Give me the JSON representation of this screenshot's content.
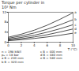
{
  "chart_data": {
    "type": "line",
    "title": "Torque per cylinder in 10³ Nm",
    "x_label": "T (°C)",
    "x": [
      0,
      2,
      4,
      6,
      8,
      10
    ],
    "xlim": [
      0,
      10
    ],
    "xticks": [
      0,
      2,
      4,
      6,
      8,
      10
    ],
    "ylim": [
      0,
      12
    ],
    "yticks": [
      0,
      4,
      8,
      12
    ],
    "series": [
      {
        "name": "a",
        "color": "#222222",
        "values": [
          2,
          3.2,
          4.8,
          6.8,
          9.2,
          11.8
        ]
      },
      {
        "name": "b",
        "color": "#222222",
        "values": [
          1.6,
          2.5,
          3.7,
          5.2,
          7,
          9
        ]
      },
      {
        "name": "c",
        "color": "#222222",
        "values": [
          1.2,
          1.9,
          2.8,
          4,
          5.4,
          7
        ]
      },
      {
        "name": "d",
        "color": "#222222",
        "values": [
          0.9,
          1.4,
          2.1,
          3,
          4.1,
          5.3
        ]
      },
      {
        "name": "e",
        "color": "#222222",
        "values": [
          0.6,
          1,
          1.5,
          2.1,
          2.8,
          3.6
        ]
      }
    ],
    "annotations": [
      "n = 198 kW/l",
      "pₑ = 18 bar",
      "a  B = 240 mm",
      "b  B = 320 mm",
      "c  B = 400 mm",
      "d  B = 480 mm",
      "e  B = 580 mm"
    ]
  }
}
